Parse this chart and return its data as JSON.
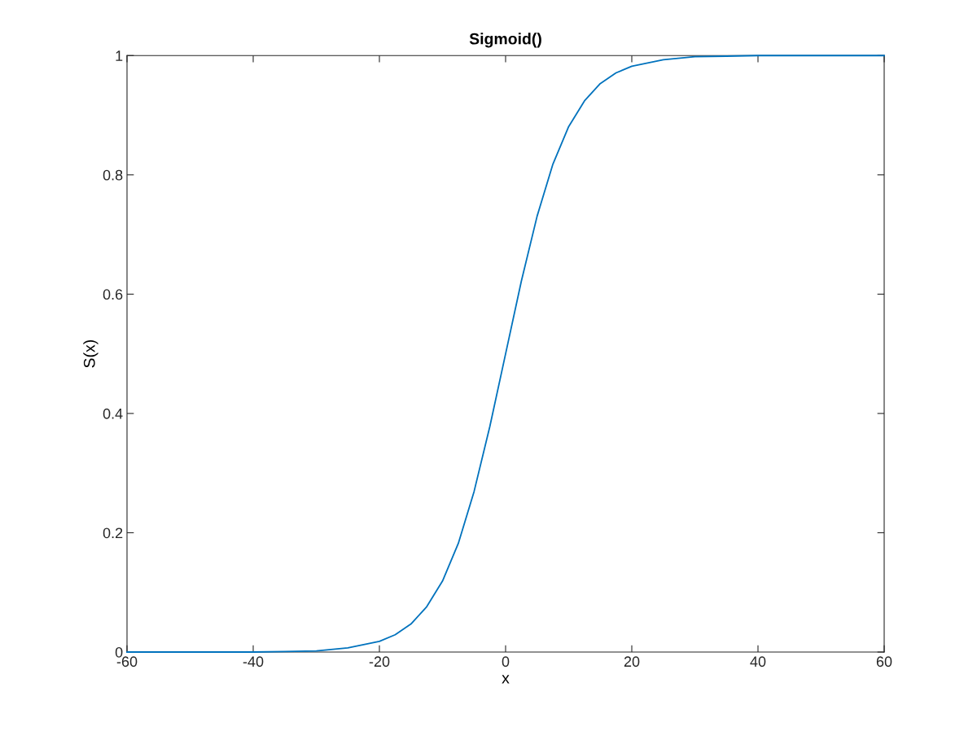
{
  "chart_data": {
    "type": "line",
    "title": "Sigmoid()",
    "xlabel": "x",
    "ylabel": "S(x)",
    "x": [
      -60,
      -50,
      -40,
      -35,
      -30,
      -25,
      -20,
      -17.5,
      -15,
      -12.5,
      -10,
      -7.5,
      -5,
      -2.5,
      0,
      2.5,
      5,
      7.5,
      10,
      12.5,
      15,
      17.5,
      20,
      25,
      30,
      35,
      40,
      50,
      60
    ],
    "series": [
      {
        "color": "#0072bd",
        "values": [
          0,
          0,
          0,
          0.001,
          0.002,
          0.007,
          0.018,
          0.029,
          0.047,
          0.076,
          0.119,
          0.182,
          0.269,
          0.378,
          0.5,
          0.622,
          0.731,
          0.818,
          0.881,
          0.924,
          0.953,
          0.971,
          0.982,
          0.993,
          0.998,
          0.999,
          1,
          1,
          1
        ]
      }
    ],
    "xlim": [
      -60,
      60
    ],
    "xticks": [
      -60,
      -40,
      -20,
      0,
      20,
      40,
      60
    ],
    "ylim": [
      0,
      1
    ],
    "yticks": [
      0,
      {
        "value": 0.2,
        "label": "0.2"
      },
      {
        "value": 0.4,
        "label": "0.4"
      },
      {
        "value": 0.6,
        "label": "0.6"
      },
      {
        "value": 0.8,
        "label": "0.8"
      },
      1
    ],
    "grid": false,
    "marker": "none",
    "line_style": "solid"
  }
}
